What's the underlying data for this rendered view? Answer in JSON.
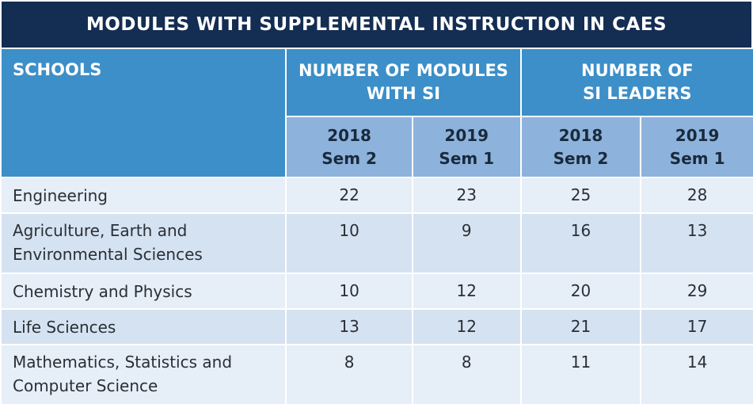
{
  "title": "MODULES WITH SUPPLEMENTAL INSTRUCTION IN CAES",
  "headers": {
    "schools": "SCHOOLS",
    "modules_line1": "NUMBER OF MODULES",
    "modules_line2": "WITH SI",
    "leaders_line1": "NUMBER OF",
    "leaders_line2": "SI LEADERS",
    "sub": [
      {
        "year": "2018",
        "sem": "Sem 2"
      },
      {
        "year": "2019",
        "sem": "Sem 1"
      },
      {
        "year": "2018",
        "sem": "Sem 2"
      },
      {
        "year": "2019",
        "sem": "Sem 1"
      }
    ]
  },
  "rows": [
    {
      "school_line1": "Engineering",
      "school_line2": "",
      "values": [
        "22",
        "23",
        "25",
        "28"
      ]
    },
    {
      "school_line1": "Agriculture, Earth and",
      "school_line2": "Environmental Sciences",
      "values": [
        "10",
        "9",
        "16",
        "13"
      ]
    },
    {
      "school_line1": "Chemistry and Physics",
      "school_line2": "",
      "values": [
        "10",
        "12",
        "20",
        "29"
      ]
    },
    {
      "school_line1": "Life Sciences",
      "school_line2": "",
      "values": [
        "13",
        "12",
        "21",
        "17"
      ]
    },
    {
      "school_line1": "Mathematics, Statistics and",
      "school_line2": "Computer Science",
      "values": [
        "8",
        "8",
        "11",
        "14"
      ]
    }
  ],
  "colors": {
    "title_bg": "#142d52",
    "header_bg": "#3c8fc8",
    "subheader_bg": "#8db3dc",
    "row_light": "#e6eef7",
    "row_alt": "#d5e2f1"
  }
}
